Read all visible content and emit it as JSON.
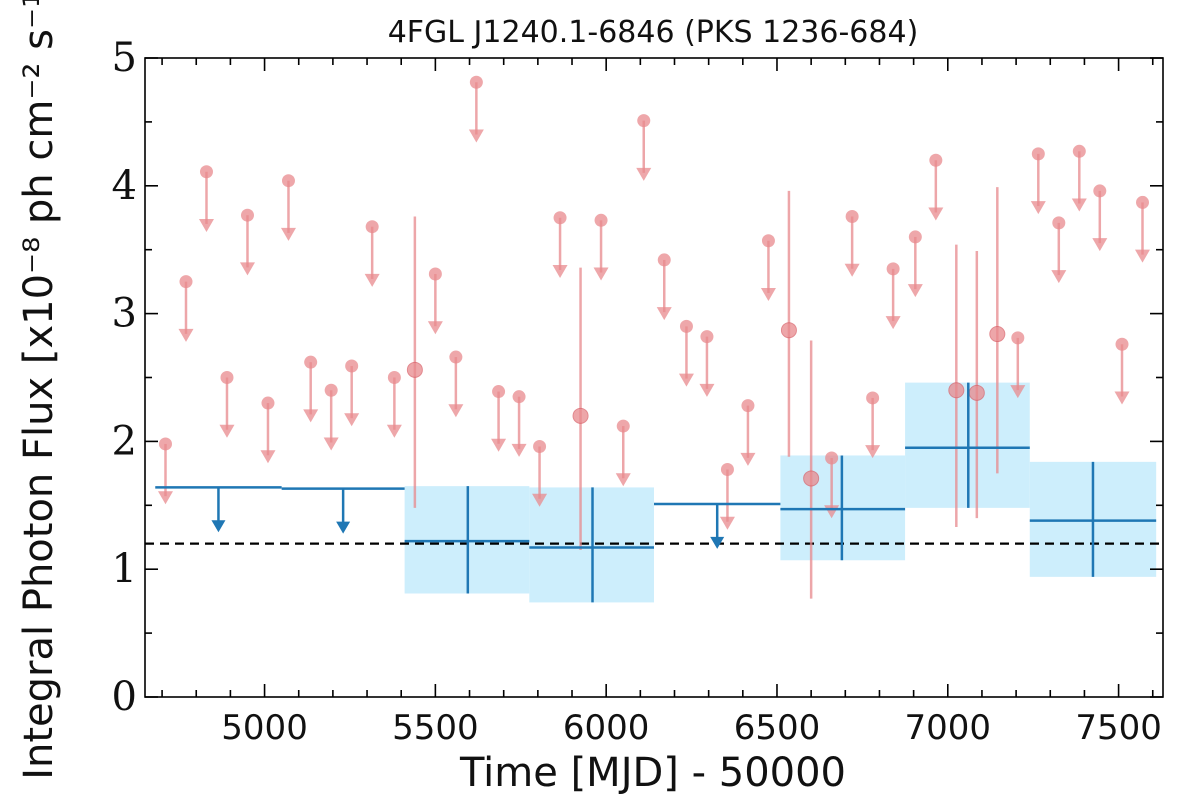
{
  "chart_data": {
    "type": "scatter",
    "title": "4FGL J1240.1-6846 (PKS 1236-684)",
    "xlabel": "Time [MJD] - 50000",
    "ylabel": "Integral Photon Flux [x10⁻⁸ ph cm⁻² s⁻¹]",
    "xlim": [
      4650,
      7630
    ],
    "ylim": [
      0,
      5
    ],
    "x_ticks": [
      5000,
      5500,
      6000,
      6500,
      7000,
      7500
    ],
    "y_ticks": [
      0,
      1,
      2,
      3,
      4,
      5
    ],
    "reference_line": {
      "y": 1.2,
      "style": "dashed",
      "color": "#000000"
    },
    "series": [
      {
        "marker": "upper-limit",
        "color": "#e8898d",
        "upper_limits": [
          {
            "x": 4710,
            "y": 1.98
          },
          {
            "x": 4770,
            "y": 3.25
          },
          {
            "x": 4830,
            "y": 4.11
          },
          {
            "x": 4890,
            "y": 2.5
          },
          {
            "x": 4950,
            "y": 3.77
          },
          {
            "x": 5010,
            "y": 2.3
          },
          {
            "x": 5070,
            "y": 4.04
          },
          {
            "x": 5135,
            "y": 2.62
          },
          {
            "x": 5195,
            "y": 2.4
          },
          {
            "x": 5255,
            "y": 2.59
          },
          {
            "x": 5315,
            "y": 3.68
          },
          {
            "x": 5380,
            "y": 2.5
          },
          {
            "x": 5500,
            "y": 3.31
          },
          {
            "x": 5560,
            "y": 2.66
          },
          {
            "x": 5620,
            "y": 4.81
          },
          {
            "x": 5685,
            "y": 2.39
          },
          {
            "x": 5745,
            "y": 2.35
          },
          {
            "x": 5805,
            "y": 1.96
          },
          {
            "x": 5865,
            "y": 3.75
          },
          {
            "x": 5985,
            "y": 3.73
          },
          {
            "x": 6050,
            "y": 2.12
          },
          {
            "x": 6110,
            "y": 4.51
          },
          {
            "x": 6170,
            "y": 3.42
          },
          {
            "x": 6235,
            "y": 2.9
          },
          {
            "x": 6295,
            "y": 2.82
          },
          {
            "x": 6355,
            "y": 1.78
          },
          {
            "x": 6415,
            "y": 2.28
          },
          {
            "x": 6475,
            "y": 3.57
          },
          {
            "x": 6660,
            "y": 1.87
          },
          {
            "x": 6720,
            "y": 3.76
          },
          {
            "x": 6780,
            "y": 2.34
          },
          {
            "x": 6840,
            "y": 3.35
          },
          {
            "x": 6905,
            "y": 3.6
          },
          {
            "x": 6965,
            "y": 4.2
          },
          {
            "x": 7205,
            "y": 2.81
          },
          {
            "x": 7265,
            "y": 4.25
          },
          {
            "x": 7325,
            "y": 3.71
          },
          {
            "x": 7385,
            "y": 4.27
          },
          {
            "x": 7445,
            "y": 3.96
          },
          {
            "x": 7510,
            "y": 2.76
          },
          {
            "x": 7570,
            "y": 3.87
          }
        ],
        "detections": [
          {
            "x": 5440,
            "y": 2.56,
            "y_low": 1.48,
            "y_high": 3.76
          },
          {
            "x": 5925,
            "y": 2.2,
            "y_low": 1.15,
            "y_high": 3.36
          },
          {
            "x": 6535,
            "y": 2.87,
            "y_low": 1.88,
            "y_high": 3.96
          },
          {
            "x": 6600,
            "y": 1.71,
            "y_low": 0.77,
            "y_high": 2.79
          },
          {
            "x": 7025,
            "y": 2.4,
            "y_low": 1.33,
            "y_high": 3.54
          },
          {
            "x": 7085,
            "y": 2.38,
            "y_low": 1.4,
            "y_high": 3.49
          },
          {
            "x": 7145,
            "y": 2.84,
            "y_low": 1.75,
            "y_high": 3.99
          }
        ]
      },
      {
        "marker": "binned",
        "color": "#1f77b4",
        "band_color": "#cdeefc",
        "upper_limits": [
          {
            "x_start": 4680,
            "x_end": 5050,
            "x": 4865,
            "y": 1.64
          },
          {
            "x_start": 5050,
            "x_end": 5410,
            "x": 5230,
            "y": 1.63
          },
          {
            "x_start": 6140,
            "x_end": 6510,
            "x": 6325,
            "y": 1.51
          }
        ],
        "detections": [
          {
            "x_start": 5410,
            "x_end": 5775,
            "x": 5595,
            "y": 1.22,
            "y_low": 0.81,
            "y_high": 1.65
          },
          {
            "x_start": 5775,
            "x_end": 6140,
            "x": 5960,
            "y": 1.17,
            "y_low": 0.74,
            "y_high": 1.64
          },
          {
            "x_start": 6510,
            "x_end": 6875,
            "x": 6690,
            "y": 1.47,
            "y_low": 1.07,
            "y_high": 1.89
          },
          {
            "x_start": 6875,
            "x_end": 7240,
            "x": 7060,
            "y": 1.95,
            "y_low": 1.48,
            "y_high": 2.46
          },
          {
            "x_start": 7240,
            "x_end": 7610,
            "x": 7425,
            "y": 1.38,
            "y_low": 0.94,
            "y_high": 1.84
          }
        ]
      }
    ]
  }
}
